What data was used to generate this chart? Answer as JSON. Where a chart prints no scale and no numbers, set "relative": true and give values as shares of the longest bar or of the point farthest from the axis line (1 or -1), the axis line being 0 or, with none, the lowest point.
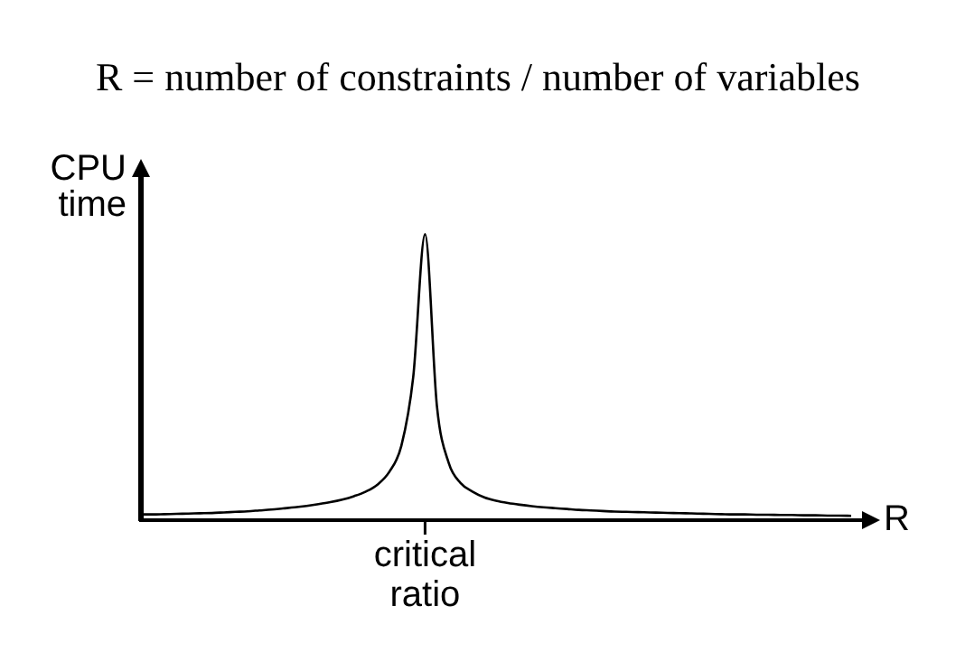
{
  "chart_data": {
    "type": "line",
    "relative": true,
    "title": "R = number of constraints / number of variables",
    "xlabel": "R",
    "ylabel": "CPU time",
    "color": "#000000",
    "marker": "none",
    "grid": false,
    "legend": false,
    "categories": [
      null,
      null,
      null,
      null,
      null,
      null,
      null,
      null,
      null,
      null,
      null,
      null,
      null,
      null,
      null,
      null,
      null,
      null,
      null,
      null,
      null,
      null,
      null,
      null,
      null,
      null,
      null,
      null,
      null,
      null,
      null,
      null,
      null,
      null,
      null,
      null,
      null,
      null,
      null,
      null,
      null,
      null,
      null,
      null,
      null,
      null,
      null,
      null,
      null,
      null,
      null,
      null,
      null,
      null,
      null,
      null,
      null,
      null,
      null,
      null,
      null
    ],
    "values": [
      0.02,
      0.02,
      0.021,
      0.022,
      0.023,
      0.024,
      0.025,
      0.027,
      0.029,
      0.031,
      0.034,
      0.037,
      0.041,
      0.045,
      0.05,
      0.056,
      0.063,
      0.072,
      0.084,
      0.1,
      0.125,
      0.17,
      0.26,
      0.5,
      1,
      0.4,
      0.2,
      0.13,
      0.1,
      0.08,
      0.068,
      0.06,
      0.054,
      0.049,
      0.045,
      0.042,
      0.039,
      0.036,
      0.034,
      0.032,
      0.03,
      0.029,
      0.028,
      0.027,
      0.026,
      0.025,
      0.024,
      0.023,
      0.022,
      0.021,
      0.02,
      0.02,
      0.019,
      0.019,
      0.018,
      0.018,
      0.017,
      0.017,
      0.016,
      0.016,
      0.015
    ],
    "annotations": [
      "critical ratio"
    ]
  }
}
